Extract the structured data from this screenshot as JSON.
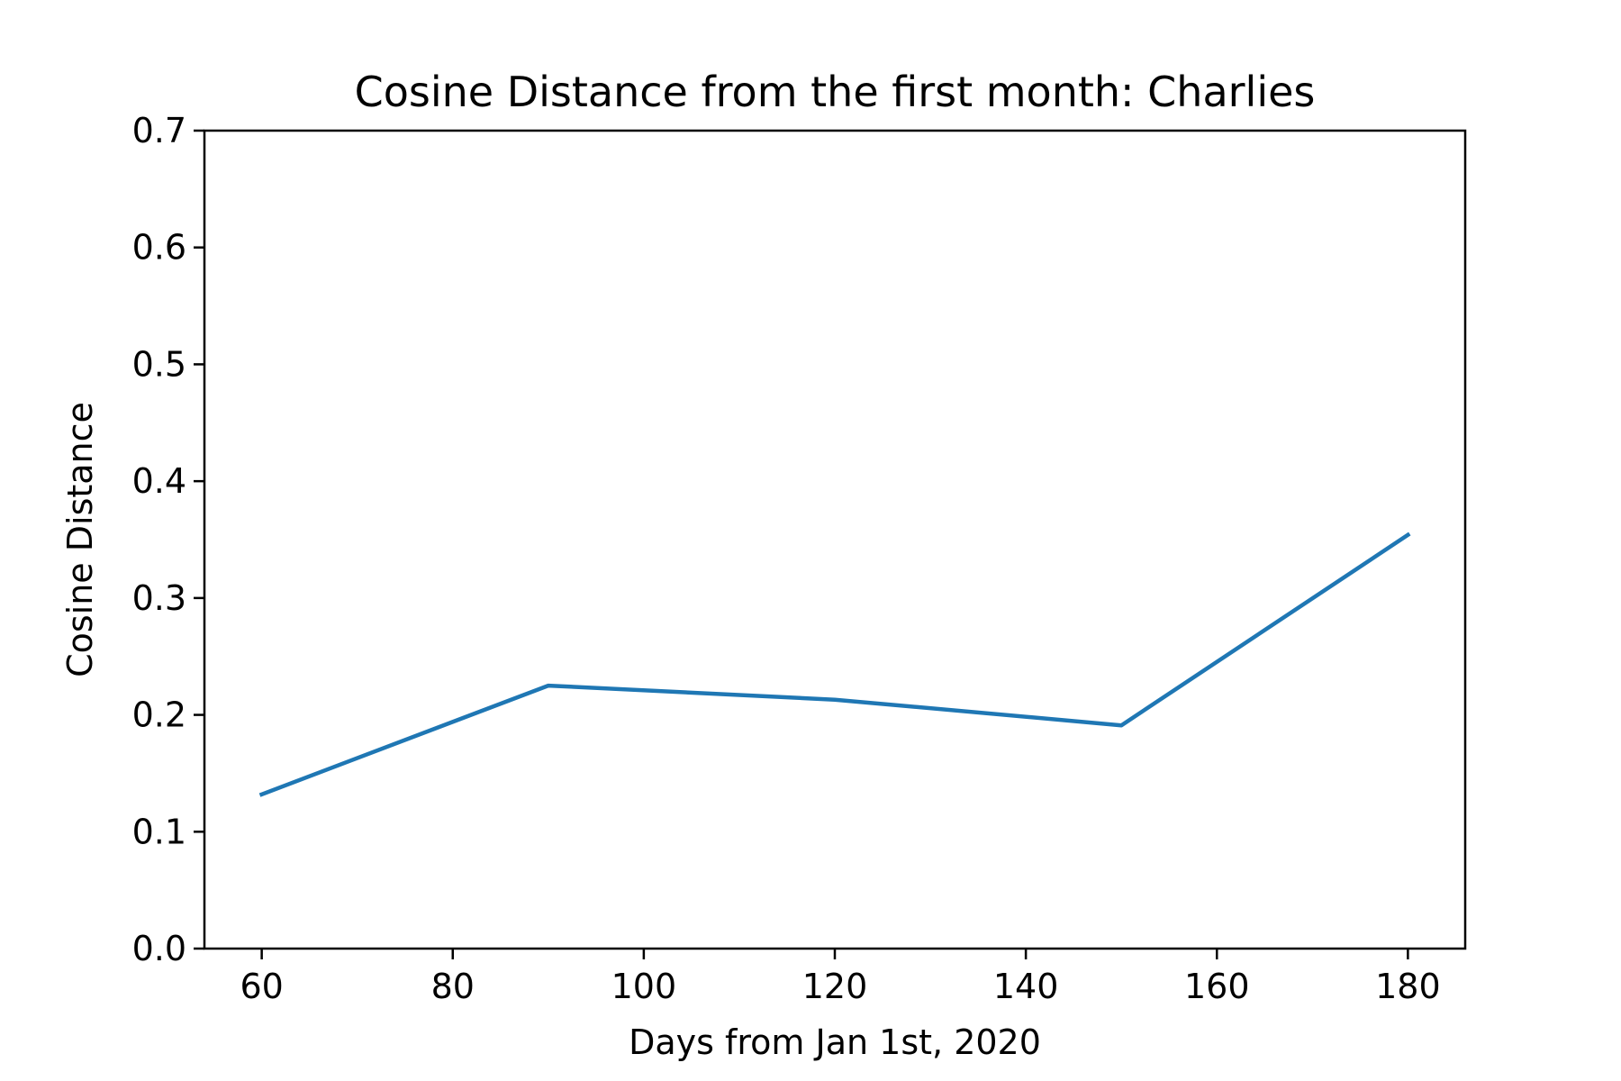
{
  "chart_data": {
    "type": "line",
    "title": "Cosine Distance from the first month: Charlies",
    "xlabel": "Days from Jan 1st, 2020",
    "ylabel": "Cosine Distance",
    "xlim": [
      54,
      186
    ],
    "ylim": [
      0,
      0.7
    ],
    "x_ticks": [
      60,
      80,
      100,
      120,
      140,
      160,
      180
    ],
    "y_ticks": [
      0.0,
      0.1,
      0.2,
      0.3,
      0.4,
      0.5,
      0.6,
      0.7
    ],
    "x_tick_labels": [
      "60",
      "80",
      "100",
      "120",
      "140",
      "160",
      "180"
    ],
    "y_tick_labels": [
      "0.0",
      "0.1",
      "0.2",
      "0.3",
      "0.4",
      "0.5",
      "0.6",
      "0.7"
    ],
    "grid": false,
    "series": [
      {
        "color": "#1f77b4",
        "x": [
          60,
          90,
          120,
          150,
          180
        ],
        "y": [
          0.132,
          0.225,
          0.213,
          0.191,
          0.354
        ]
      }
    ]
  }
}
